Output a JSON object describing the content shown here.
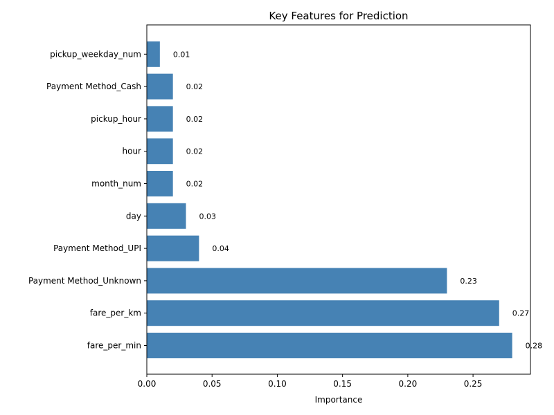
{
  "chart_data": {
    "type": "bar",
    "orientation": "horizontal",
    "title": "Key Features for Prediction",
    "xlabel": "Importance",
    "ylabel": "",
    "xlim": [
      0,
      0.294
    ],
    "x_ticks": [
      "0.00",
      "0.05",
      "0.10",
      "0.15",
      "0.20",
      "0.25"
    ],
    "x_tick_values": [
      0,
      0.05,
      0.1,
      0.15,
      0.2,
      0.25
    ],
    "grid": false,
    "bar_color": "#4682b4",
    "categories": [
      "fare_per_min",
      "fare_per_km",
      "Payment Method_Unknown",
      "Payment Method_UPI",
      "day",
      "month_num",
      "hour",
      "pickup_hour",
      "Payment Method_Cash",
      "pickup_weekday_num"
    ],
    "values": [
      0.28,
      0.27,
      0.23,
      0.04,
      0.03,
      0.02,
      0.02,
      0.02,
      0.02,
      0.01
    ],
    "data_labels": [
      "0.28",
      "0.27",
      "0.23",
      "0.04",
      "0.03",
      "0.02",
      "0.02",
      "0.02",
      "0.02",
      "0.01"
    ]
  }
}
